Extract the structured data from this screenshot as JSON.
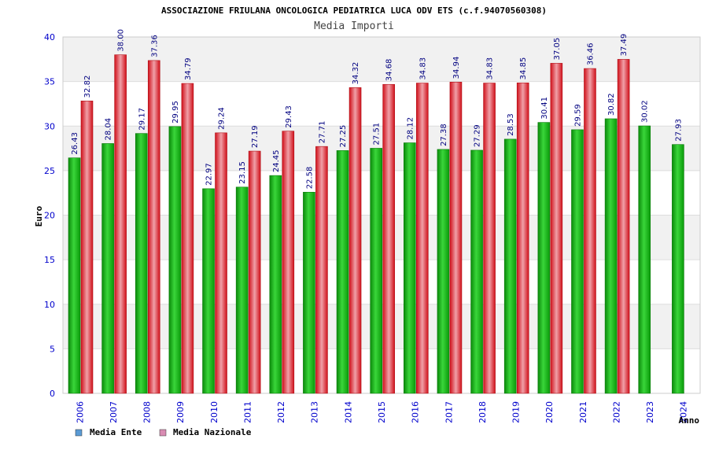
{
  "chart_data": {
    "type": "bar",
    "title": "ASSOCIAZIONE FRIULANA ONCOLOGICA PEDIATRICA LUCA ODV ETS (c.f.94070560308)",
    "subtitle": "Media Importi",
    "xlabel": "Anno",
    "ylabel": "Euro",
    "ylim": [
      0,
      40
    ],
    "yticks": [
      0,
      5,
      10,
      15,
      20,
      25,
      30,
      35,
      40
    ],
    "categories": [
      "2006",
      "2007",
      "2008",
      "2009",
      "2010",
      "2011",
      "2012",
      "2013",
      "2014",
      "2015",
      "2016",
      "2017",
      "2018",
      "2019",
      "2020",
      "2021",
      "2022",
      "2023",
      "2024"
    ],
    "series": [
      {
        "name": "Media Ente",
        "color": "#1db81d",
        "values": [
          26.43,
          28.04,
          29.17,
          29.95,
          22.97,
          23.15,
          24.45,
          22.58,
          27.25,
          27.51,
          28.12,
          27.38,
          27.29,
          28.53,
          30.41,
          29.59,
          30.82,
          30.02,
          27.93
        ],
        "labels": [
          "26.43",
          "28.04",
          "29.17",
          "29.95",
          "22.97",
          "23.15",
          "24.45",
          "22.58",
          "27.25",
          "27.51",
          "28.12",
          "27.38",
          "27.29",
          "28.53",
          "30.41",
          "29.59",
          "30.82",
          "30.02",
          "27.93"
        ]
      },
      {
        "name": "Media Nazionale",
        "color": "#e8202a",
        "values": [
          32.82,
          38.0,
          37.36,
          34.79,
          29.24,
          27.19,
          29.43,
          27.71,
          34.32,
          34.68,
          34.83,
          34.94,
          34.83,
          34.85,
          37.05,
          36.46,
          37.49,
          null,
          null
        ],
        "labels": [
          "32.82",
          "38.00",
          "37.36",
          "34.79",
          "29.24",
          "27.19",
          "29.43",
          "27.71",
          "34.32",
          "34.68",
          "34.83",
          "34.94",
          "34.83",
          "34.85",
          "37.05",
          "36.46",
          "37.49",
          null,
          null
        ]
      }
    ],
    "legend": {
      "position": "bottom-left",
      "items": [
        {
          "label": "Media Ente",
          "swatch_color": "#5b9bd5"
        },
        {
          "label": "Media Nazionale",
          "swatch_color": "#d98cb3"
        }
      ]
    },
    "grid": true
  }
}
